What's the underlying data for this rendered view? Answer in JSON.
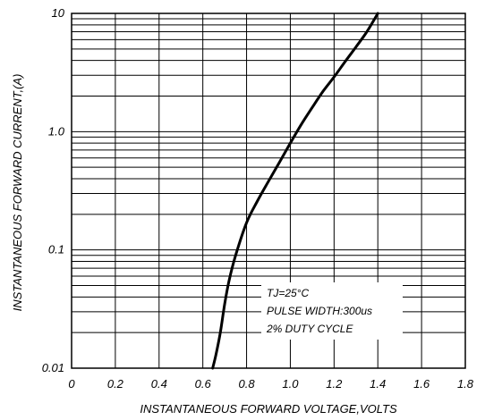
{
  "chart_data": {
    "type": "line",
    "title": "",
    "xlabel": "INSTANTANEOUS FORWARD VOLTAGE,VOLTS",
    "ylabel": "INSTANTANEOUS FORWARD CURRENT,(A)",
    "xlim": [
      0,
      1.8
    ],
    "ylim": [
      0.01,
      10
    ],
    "yscale": "log",
    "grid": true,
    "x_ticks": [
      0,
      0.2,
      0.4,
      0.6,
      0.8,
      1.0,
      1.2,
      1.4,
      1.6,
      1.8
    ],
    "x_tick_labels": [
      "0",
      "0.2",
      "0.4",
      "0.6",
      "0.8",
      "1.0",
      "1.2",
      "1.4",
      "1.6",
      "1.8"
    ],
    "y_ticks": [
      0.01,
      0.1,
      1.0,
      10
    ],
    "y_tick_labels": [
      "0.01",
      "0.1",
      "1.0",
      "10"
    ],
    "series": [
      {
        "x": [
          0.645,
          0.66,
          0.68,
          0.7,
          0.72,
          0.75,
          0.8,
          0.85,
          0.9,
          0.95,
          1.0,
          1.05,
          1.1,
          1.15,
          1.2,
          1.25,
          1.3,
          1.35,
          1.4
        ],
        "y": [
          0.01,
          0.013,
          0.02,
          0.035,
          0.055,
          0.09,
          0.17,
          0.26,
          0.38,
          0.55,
          0.8,
          1.15,
          1.6,
          2.2,
          2.9,
          3.9,
          5.2,
          7.0,
          10.0
        ]
      }
    ],
    "annotations": [
      "TJ=25°C",
      "PULSE WIDTH:300us",
      "2% DUTY CYCLE"
    ]
  }
}
